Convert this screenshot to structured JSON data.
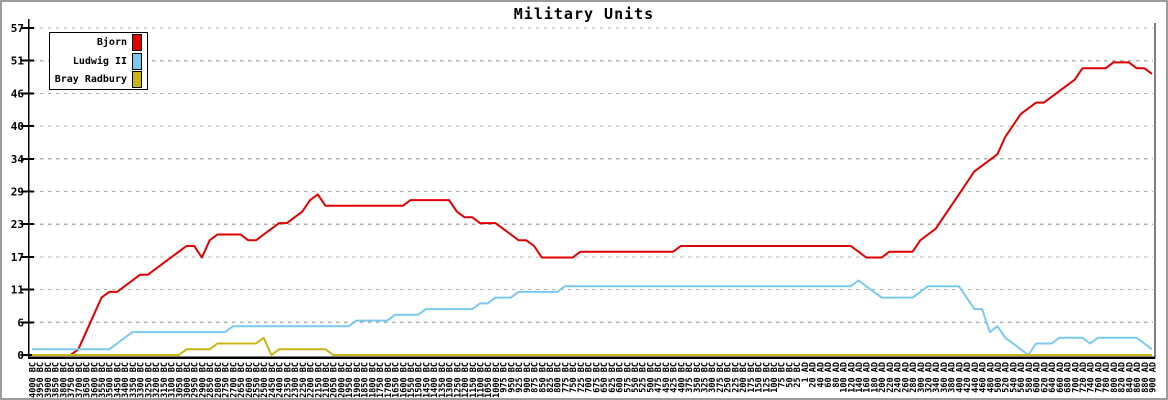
{
  "window": {
    "title": "Military Units"
  },
  "colors": {
    "background": "#ffffff",
    "window_border": "#9c9c9c",
    "axis": "#000000",
    "grid": "#b0b0b0",
    "text": "#000000"
  },
  "chart_data": {
    "type": "line",
    "title": "Military Units",
    "grid": "horizontal-dashed",
    "legend_position": "top-left",
    "y_axis": {
      "min": 0,
      "max": 57,
      "tick_labels": [
        "0",
        "6",
        "11",
        "17",
        "23",
        "29",
        "34",
        "40",
        "46",
        "51",
        "57"
      ]
    },
    "x_axis": {
      "labels": [
        "4000 BC",
        "3950 BC",
        "3900 BC",
        "3850 BC",
        "3800 BC",
        "3750 BC",
        "3700 BC",
        "3650 BC",
        "3600 BC",
        "3550 BC",
        "3500 BC",
        "3450 BC",
        "3400 BC",
        "3350 BC",
        "3300 BC",
        "3250 BC",
        "3200 BC",
        "3150 BC",
        "3100 BC",
        "3050 BC",
        "3000 BC",
        "2950 BC",
        "2900 BC",
        "2850 BC",
        "2800 BC",
        "2750 BC",
        "2700 BC",
        "2650 BC",
        "2600 BC",
        "2550 BC",
        "2500 BC",
        "2450 BC",
        "2400 BC",
        "2350 BC",
        "2300 BC",
        "2250 BC",
        "2200 BC",
        "2150 BC",
        "2100 BC",
        "2050 BC",
        "2000 BC",
        "1950 BC",
        "1900 BC",
        "1850 BC",
        "1800 BC",
        "1750 BC",
        "1700 BC",
        "1650 BC",
        "1600 BC",
        "1550 BC",
        "1500 BC",
        "1450 BC",
        "1400 BC",
        "1350 BC",
        "1300 BC",
        "1250 BC",
        "1200 BC",
        "1150 BC",
        "1100 BC",
        "1050 BC",
        "1000 BC",
        "975 BC",
        "950 BC",
        "925 BC",
        "900 BC",
        "875 BC",
        "850 BC",
        "825 BC",
        "800 BC",
        "775 BC",
        "750 BC",
        "725 BC",
        "700 BC",
        "675 BC",
        "650 BC",
        "625 BC",
        "600 BC",
        "575 BC",
        "550 BC",
        "525 BC",
        "500 BC",
        "475 BC",
        "450 BC",
        "425 BC",
        "400 BC",
        "375 BC",
        "350 BC",
        "325 BC",
        "300 BC",
        "275 BC",
        "250 BC",
        "225 BC",
        "200 BC",
        "175 BC",
        "150 BC",
        "125 BC",
        "100 BC",
        "75 BC",
        "50 BC",
        "25 BC",
        "1 AD",
        "20 AD",
        "40 AD",
        "60 AD",
        "80 AD",
        "100 AD",
        "120 AD",
        "140 AD",
        "160 AD",
        "180 AD",
        "200 AD",
        "220 AD",
        "240 AD",
        "260 AD",
        "280 AD",
        "300 AD",
        "320 AD",
        "340 AD",
        "360 AD",
        "380 AD",
        "400 AD",
        "420 AD",
        "440 AD",
        "460 AD",
        "480 AD",
        "500 AD",
        "520 AD",
        "540 AD",
        "560 AD",
        "580 AD",
        "600 AD",
        "620 AD",
        "640 AD",
        "660 AD",
        "680 AD",
        "700 AD",
        "720 AD",
        "740 AD",
        "760 AD",
        "780 AD",
        "800 AD",
        "820 AD",
        "840 AD",
        "860 AD",
        "880 AD",
        "900 AD"
      ]
    },
    "series": [
      {
        "name": "Bjorn",
        "color": "#e00000",
        "values": [
          0,
          0,
          0,
          0,
          0,
          0,
          1,
          4,
          7,
          10,
          11,
          11,
          12,
          13,
          14,
          14,
          15,
          16,
          17,
          18,
          19,
          19,
          17,
          20,
          21,
          21,
          21,
          21,
          20,
          20,
          21,
          22,
          23,
          23,
          24,
          25,
          27,
          28,
          26,
          26,
          26,
          26,
          26,
          26,
          26,
          26,
          26,
          26,
          26,
          27,
          27,
          27,
          27,
          27,
          27,
          25,
          24,
          24,
          23,
          23,
          23,
          22,
          21,
          20,
          20,
          19,
          17,
          17,
          17,
          17,
          17,
          18,
          18,
          18,
          18,
          18,
          18,
          18,
          18,
          18,
          18,
          18,
          18,
          18,
          19,
          19,
          19,
          19,
          19,
          19,
          19,
          19,
          19,
          19,
          19,
          19,
          19,
          19,
          19,
          19,
          19,
          19,
          19,
          19,
          19,
          19,
          19,
          18,
          17,
          17,
          17,
          18,
          18,
          18,
          18,
          20,
          21,
          22,
          24,
          26,
          28,
          30,
          32,
          33,
          34,
          35,
          38,
          40,
          42,
          43,
          44,
          44,
          45,
          46,
          47,
          48,
          50,
          50,
          50,
          50,
          51,
          51,
          51,
          50,
          50,
          49
        ]
      },
      {
        "name": "Ludwig II",
        "color": "#7cc9ef",
        "values": [
          1,
          1,
          1,
          1,
          1,
          1,
          1,
          1,
          1,
          1,
          1,
          2,
          3,
          4,
          4,
          4,
          4,
          4,
          4,
          4,
          4,
          4,
          4,
          4,
          4,
          4,
          5,
          5,
          5,
          5,
          5,
          5,
          5,
          5,
          5,
          5,
          5,
          5,
          5,
          5,
          5,
          5,
          6,
          6,
          6,
          6,
          6,
          7,
          7,
          7,
          7,
          8,
          8,
          8,
          8,
          8,
          8,
          8,
          9,
          9,
          10,
          10,
          10,
          11,
          11,
          11,
          11,
          11,
          11,
          12,
          12,
          12,
          12,
          12,
          12,
          12,
          12,
          12,
          12,
          12,
          12,
          12,
          12,
          12,
          12,
          12,
          12,
          12,
          12,
          12,
          12,
          12,
          12,
          12,
          12,
          12,
          12,
          12,
          12,
          12,
          12,
          12,
          12,
          12,
          12,
          12,
          12,
          13,
          12,
          11,
          10,
          10,
          10,
          10,
          10,
          11,
          12,
          12,
          12,
          12,
          12,
          10,
          8,
          8,
          4,
          5,
          3,
          2,
          1,
          0,
          2,
          2,
          2,
          3,
          3,
          3,
          3,
          2,
          3,
          3,
          3,
          3,
          3,
          3,
          2,
          1
        ]
      },
      {
        "name": "Bray Radbury",
        "color": "#c8b414",
        "values": [
          0,
          0,
          0,
          0,
          0,
          0,
          0,
          0,
          0,
          0,
          0,
          0,
          0,
          0,
          0,
          0,
          0,
          0,
          0,
          0,
          1,
          1,
          1,
          1,
          2,
          2,
          2,
          2,
          2,
          2,
          3,
          0,
          1,
          1,
          1,
          1,
          1,
          1,
          1,
          0,
          0,
          0,
          0,
          0,
          0,
          0,
          0,
          0,
          0,
          0,
          0,
          0,
          0,
          0,
          0,
          0,
          0,
          0,
          0,
          0,
          0,
          0,
          0,
          0,
          0,
          0,
          0,
          0,
          0,
          0,
          0,
          0,
          0,
          0,
          0,
          0,
          0,
          0,
          0,
          0,
          0,
          0,
          0,
          0,
          0,
          0,
          0,
          0,
          0,
          0,
          0,
          0,
          0,
          0,
          0,
          0,
          0,
          0,
          0,
          0,
          0,
          0,
          0,
          0,
          0,
          0,
          0,
          0,
          0,
          0,
          0,
          0,
          0,
          0,
          0,
          0,
          0,
          0,
          0,
          0,
          0,
          0,
          0,
          0,
          0,
          0,
          0,
          0,
          0,
          0,
          0,
          0,
          0,
          0,
          0,
          0,
          0,
          0,
          0,
          0,
          0,
          0,
          0,
          0,
          0,
          0
        ]
      }
    ]
  }
}
